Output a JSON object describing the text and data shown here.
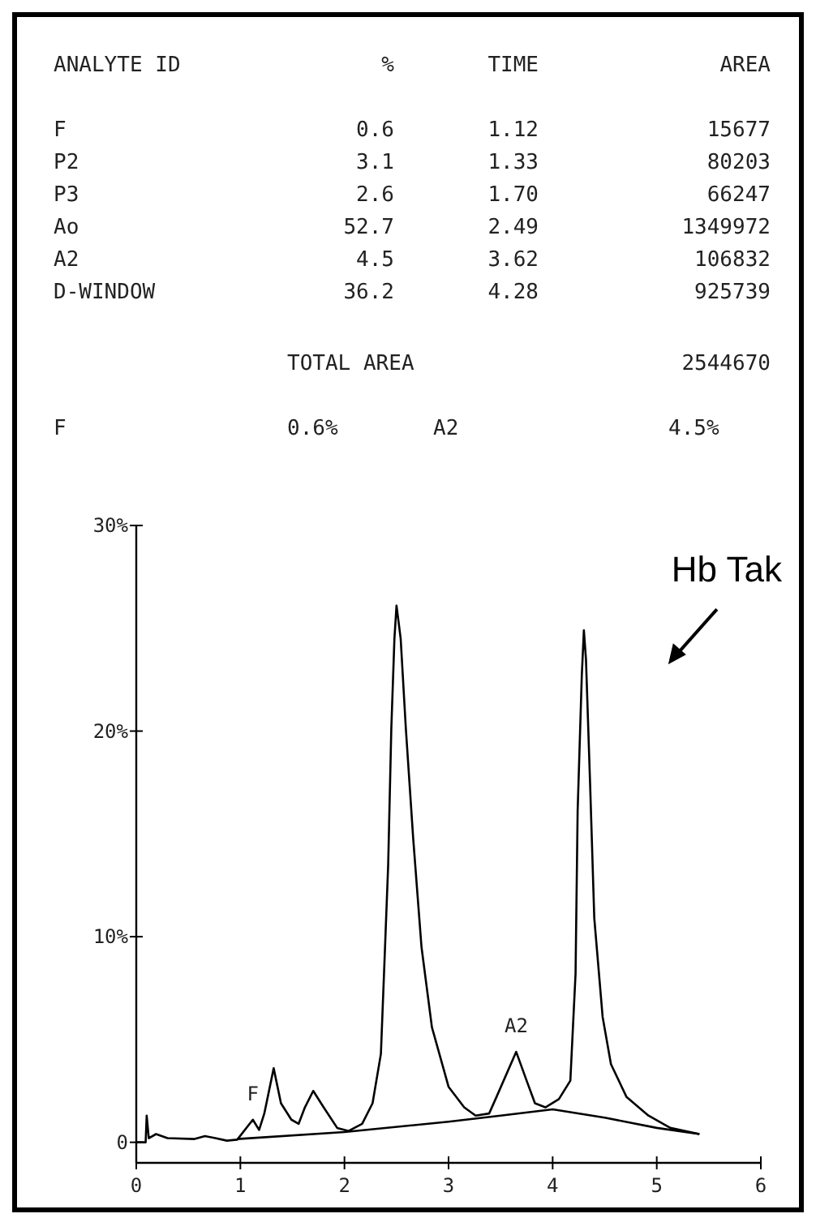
{
  "chart_data": {
    "type": "line",
    "annotations": [
      "ANALYTE ID",
      "%",
      "TIME",
      "AREA",
      "F",
      "0.6",
      "1.12",
      "15677",
      "P2",
      "3.1",
      "1.33",
      "80203",
      "P3",
      "2.6",
      "1.70",
      "66247",
      "Ao",
      "52.7",
      "2.49",
      "1349972",
      "A2",
      "4.5",
      "3.62",
      "106832",
      "D-WINDOW",
      "36.2",
      "4.28",
      "925739",
      "TOTAL AREA",
      "2544670",
      "F",
      "0.6%",
      "A2",
      "4.5%",
      {
        "text": "F",
        "x": 1.12,
        "y": 1.1
      },
      {
        "text": "A2",
        "x": 3.65,
        "y": 4.4
      },
      {
        "text": "Hb Tak",
        "x": 4.3,
        "y": 24.9
      }
    ],
    "xlim": [
      0,
      6
    ],
    "ylim": [
      -1,
      30
    ],
    "xticks": [
      0,
      1,
      2,
      3,
      4,
      5,
      6
    ],
    "yticks": [
      {
        "value": 0,
        "label": "0"
      },
      {
        "value": 10,
        "label": "10%"
      },
      {
        "value": 20,
        "label": "20%"
      },
      {
        "value": 30,
        "label": "30%"
      }
    ],
    "grid": false,
    "line_style": "solid",
    "series": [
      {
        "color": "#000000",
        "x": [
          0,
          0.09,
          0.1,
          0.12,
          0.19,
          0.3,
          0.56,
          0.66,
          0.76,
          0.87,
          0.97,
          1.12,
          1.18,
          1.23,
          1.32,
          1.39,
          1.49,
          1.56,
          1.62,
          1.7,
          1.8,
          1.93,
          2.04,
          2.17,
          2.27,
          2.35,
          2.38,
          2.42,
          2.45,
          2.48,
          2.5,
          2.54,
          2.59,
          2.66,
          2.74,
          2.84,
          3.0,
          3.15,
          3.26,
          3.39,
          3.46,
          3.65,
          3.75,
          3.83,
          3.93,
          4.06,
          4.17,
          4.22,
          4.24,
          4.28,
          4.3,
          4.32,
          4.36,
          4.4,
          4.48,
          4.56,
          4.71,
          4.92,
          5.13,
          5.41
        ],
        "values": [
          0,
          0,
          1.3,
          0.2,
          0.4,
          0.2,
          0.16,
          0.3,
          0.2,
          0.08,
          0.13,
          1.1,
          0.6,
          1.4,
          3.6,
          1.9,
          1.1,
          0.9,
          1.7,
          2.5,
          1.7,
          0.7,
          0.55,
          0.9,
          1.9,
          4.3,
          8.2,
          13.5,
          20.1,
          24.5,
          26.1,
          24.5,
          20.1,
          14.8,
          9.5,
          5.6,
          2.7,
          1.7,
          1.3,
          1.4,
          2.2,
          4.4,
          3.0,
          1.9,
          1.7,
          2.1,
          3.0,
          8.2,
          16.1,
          22.7,
          24.9,
          23.5,
          17.4,
          10.9,
          6.1,
          3.8,
          2.2,
          1.3,
          0.7,
          0.4
        ]
      },
      {
        "color": "#000000",
        "x": [
          0.97,
          2.0,
          3.0,
          3.5,
          4.0,
          4.5,
          5.0,
          5.41
        ],
        "values": [
          0.16,
          0.5,
          1.0,
          1.3,
          1.6,
          1.2,
          0.7,
          0.4
        ]
      }
    ]
  }
}
